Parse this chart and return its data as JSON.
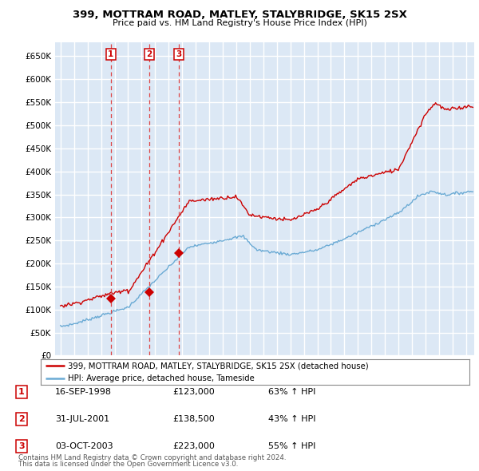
{
  "title": "399, MOTTRAM ROAD, MATLEY, STALYBRIDGE, SK15 2SX",
  "subtitle": "Price paid vs. HM Land Registry's House Price Index (HPI)",
  "ylim": [
    0,
    680000
  ],
  "yticks": [
    0,
    50000,
    100000,
    150000,
    200000,
    250000,
    300000,
    350000,
    400000,
    450000,
    500000,
    550000,
    600000,
    650000
  ],
  "xlim_left": 1994.6,
  "xlim_right": 2025.6,
  "plot_bg_color": "#dce8f5",
  "grid_color": "#ffffff",
  "sales": [
    {
      "label": "1",
      "date_str": "16-SEP-1998",
      "date_x": 1998.71,
      "price": 123000,
      "pct": "63%",
      "dir": "↑"
    },
    {
      "label": "2",
      "date_str": "31-JUL-2001",
      "date_x": 2001.58,
      "price": 138500,
      "pct": "43%",
      "dir": "↑"
    },
    {
      "label": "3",
      "date_str": "03-OCT-2003",
      "date_x": 2003.75,
      "price": 223000,
      "pct": "55%",
      "dir": "↑"
    }
  ],
  "legend_line1": "399, MOTTRAM ROAD, MATLEY, STALYBRIDGE, SK15 2SX (detached house)",
  "legend_line2": "HPI: Average price, detached house, Tameside",
  "footer1": "Contains HM Land Registry data © Crown copyright and database right 2024.",
  "footer2": "This data is licensed under the Open Government Licence v3.0.",
  "red_line_color": "#cc0000",
  "blue_line_color": "#6aaad4",
  "vline_color": "#dd4444"
}
